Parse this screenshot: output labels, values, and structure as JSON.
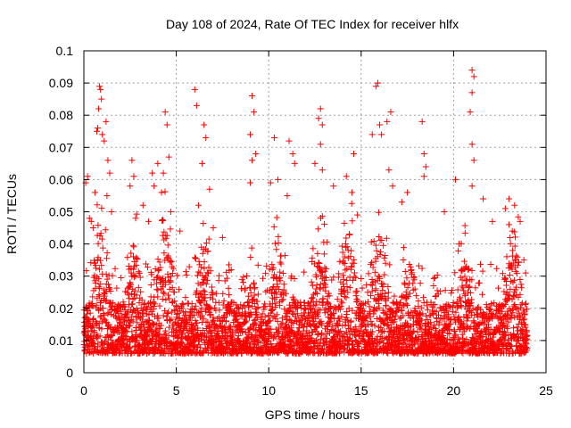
{
  "chart_data": {
    "type": "scatter",
    "title": "Day 108 of 2024, Rate Of TEC Index for receiver hlfx",
    "xlabel": "GPS time / hours",
    "ylabel": "ROTI / TECUs",
    "xlim": [
      0,
      25
    ],
    "ylim": [
      0,
      0.1
    ],
    "xticks": [
      "0",
      "5",
      "10",
      "15",
      "20",
      "25"
    ],
    "yticks": [
      "0",
      "0.01",
      "0.02",
      "0.03",
      "0.04",
      "0.05",
      "0.06",
      "0.07",
      "0.08",
      "0.09",
      "0.1"
    ],
    "grid": true,
    "marker": "+",
    "color": "#ff0000",
    "series": [
      {
        "name": "ROTI",
        "points": [
          [
            0.1,
            0.059
          ],
          [
            0.2,
            0.061
          ],
          [
            0.3,
            0.048
          ],
          [
            0.4,
            0.047
          ],
          [
            0.5,
            0.045
          ],
          [
            0.6,
            0.056
          ],
          [
            0.85,
            0.089
          ],
          [
            0.9,
            0.088
          ],
          [
            0.95,
            0.085
          ],
          [
            0.8,
            0.082
          ],
          [
            0.75,
            0.076
          ],
          [
            0.7,
            0.075
          ],
          [
            1.0,
            0.074
          ],
          [
            1.1,
            0.072
          ],
          [
            1.2,
            0.078
          ],
          [
            1.3,
            0.066
          ],
          [
            1.4,
            0.062
          ],
          [
            1.25,
            0.055
          ],
          [
            1.5,
            0.05
          ],
          [
            2.6,
            0.066
          ],
          [
            2.7,
            0.061
          ],
          [
            2.5,
            0.058
          ],
          [
            2.8,
            0.048
          ],
          [
            3.2,
            0.052
          ],
          [
            3.5,
            0.047
          ],
          [
            3.7,
            0.062
          ],
          [
            3.8,
            0.058
          ],
          [
            4.0,
            0.065
          ],
          [
            4.2,
            0.056
          ],
          [
            4.4,
            0.081
          ],
          [
            4.5,
            0.077
          ],
          [
            4.6,
            0.067
          ],
          [
            4.3,
            0.062
          ],
          [
            4.7,
            0.05
          ],
          [
            5.2,
            0.044
          ],
          [
            6.0,
            0.088
          ],
          [
            6.1,
            0.083
          ],
          [
            6.5,
            0.077
          ],
          [
            6.6,
            0.073
          ],
          [
            6.4,
            0.065
          ],
          [
            6.8,
            0.057
          ],
          [
            6.2,
            0.052
          ],
          [
            7.0,
            0.045
          ],
          [
            7.5,
            0.042
          ],
          [
            9.1,
            0.086
          ],
          [
            9.2,
            0.081
          ],
          [
            9.0,
            0.074
          ],
          [
            9.3,
            0.068
          ],
          [
            9.1,
            0.066
          ],
          [
            9.0,
            0.059
          ],
          [
            10.1,
            0.059
          ],
          [
            10.3,
            0.073
          ],
          [
            11.1,
            0.072
          ],
          [
            10.5,
            0.06
          ],
          [
            11.3,
            0.068
          ],
          [
            11.4,
            0.065
          ],
          [
            11.0,
            0.055
          ],
          [
            12.8,
            0.082
          ],
          [
            12.7,
            0.079
          ],
          [
            12.9,
            0.077
          ],
          [
            12.8,
            0.071
          ],
          [
            12.5,
            0.065
          ],
          [
            12.9,
            0.063
          ],
          [
            13.5,
            0.058
          ],
          [
            14.2,
            0.061
          ],
          [
            14.5,
            0.056
          ],
          [
            14.6,
            0.068
          ],
          [
            14.8,
            0.049
          ],
          [
            15.6,
            0.074
          ],
          [
            15.9,
            0.09
          ],
          [
            15.8,
            0.089
          ],
          [
            16.0,
            0.077
          ],
          [
            16.1,
            0.074
          ],
          [
            16.6,
            0.081
          ],
          [
            16.4,
            0.078
          ],
          [
            16.5,
            0.063
          ],
          [
            16.7,
            0.058
          ],
          [
            17.2,
            0.053
          ],
          [
            17.5,
            0.056
          ],
          [
            18.3,
            0.078
          ],
          [
            18.4,
            0.068
          ],
          [
            18.5,
            0.064
          ],
          [
            18.4,
            0.061
          ],
          [
            19.5,
            0.05
          ],
          [
            20.1,
            0.06
          ],
          [
            21.0,
            0.094
          ],
          [
            21.1,
            0.092
          ],
          [
            21.0,
            0.087
          ],
          [
            20.9,
            0.081
          ],
          [
            21.0,
            0.071
          ],
          [
            21.1,
            0.066
          ],
          [
            21.0,
            0.058
          ],
          [
            21.6,
            0.054
          ],
          [
            22.1,
            0.047
          ],
          [
            22.8,
            0.051
          ],
          [
            23.0,
            0.054
          ],
          [
            23.3,
            0.052
          ],
          [
            23.6,
            0.047
          ],
          [
            23.8,
            0.035
          ],
          [
            23.9,
            0.031
          ]
        ]
      }
    ]
  }
}
